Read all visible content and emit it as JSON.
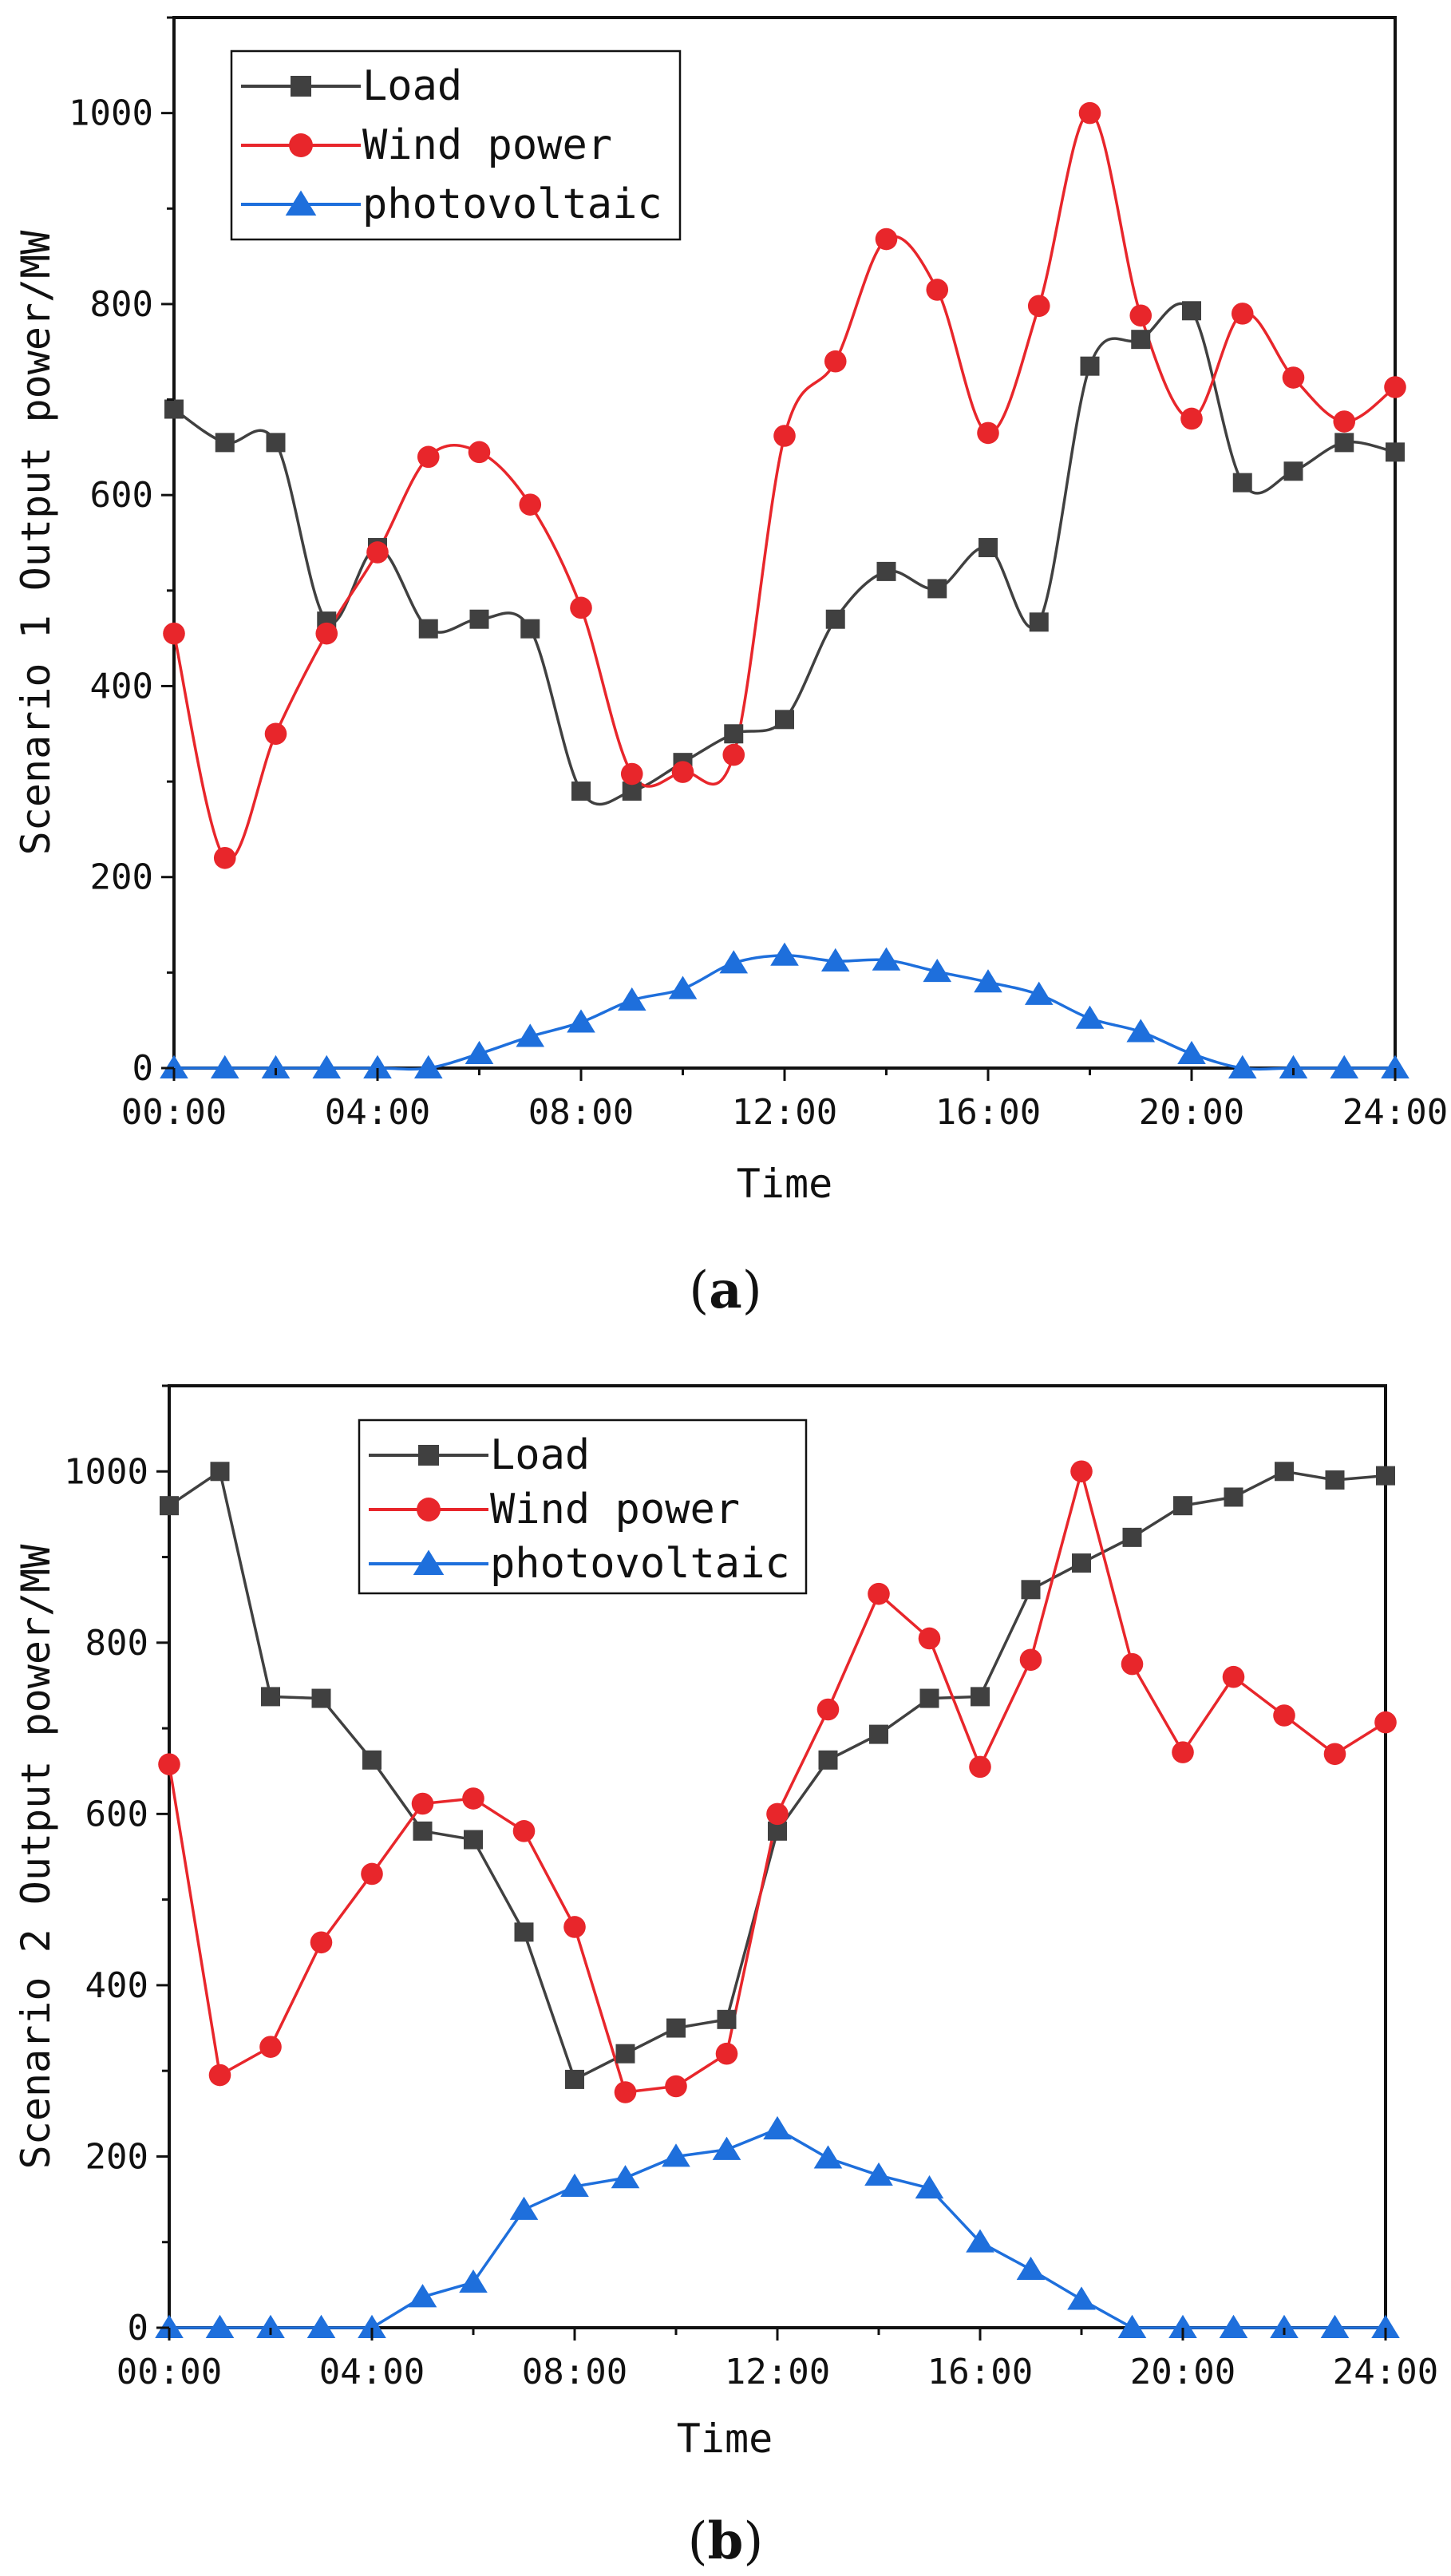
{
  "chart_data": [
    {
      "type": "line",
      "caption": {
        "open": "(",
        "letter": "a",
        "close": ")"
      },
      "xlabel": "Time",
      "ylabel": "Scenario 1 Output power/MW",
      "xlim": [
        0,
        24
      ],
      "ylim": [
        0,
        1100
      ],
      "x_ticks": [
        "00:00",
        "04:00",
        "08:00",
        "12:00",
        "16:00",
        "20:00",
        "24:00"
      ],
      "y_ticks": [
        "0",
        "200",
        "400",
        "600",
        "800",
        "1000"
      ],
      "x_hours": [
        0,
        1,
        2,
        3,
        4,
        5,
        6,
        7,
        8,
        9,
        10,
        11,
        12,
        13,
        14,
        15,
        16,
        17,
        18,
        19,
        20,
        21,
        22,
        23,
        24
      ],
      "legend_position": "top-left",
      "smooth": true,
      "series": [
        {
          "name": "Load",
          "color": "#404040",
          "marker": "square",
          "values": [
            690,
            655,
            655,
            468,
            545,
            460,
            470,
            460,
            290,
            290,
            320,
            350,
            365,
            470,
            520,
            502,
            545,
            467,
            735,
            763,
            793,
            613,
            625,
            655,
            645
          ]
        },
        {
          "name": "Wind power",
          "color": "#e8262b",
          "marker": "circle",
          "values": [
            455,
            220,
            350,
            455,
            540,
            640,
            645,
            590,
            482,
            308,
            310,
            328,
            662,
            740,
            868,
            815,
            665,
            798,
            1000,
            788,
            680,
            790,
            723,
            677,
            713
          ]
        },
        {
          "name": "photovoltaic",
          "color": "#1e6fdc",
          "marker": "triangle",
          "values": [
            0,
            0,
            0,
            0,
            0,
            0,
            15,
            33,
            48,
            71,
            83,
            110,
            118,
            112,
            113,
            101,
            90,
            77,
            52,
            38,
            15,
            0,
            0,
            0,
            0
          ]
        }
      ]
    },
    {
      "type": "line",
      "caption": {
        "open": "(",
        "letter": "b",
        "close": ")"
      },
      "xlabel": "Time",
      "ylabel": "Scenario 2 Output power/MW",
      "xlim": [
        0,
        24
      ],
      "ylim": [
        0,
        1100
      ],
      "x_ticks": [
        "00:00",
        "04:00",
        "08:00",
        "12:00",
        "16:00",
        "20:00",
        "24:00"
      ],
      "y_ticks": [
        "0",
        "200",
        "400",
        "600",
        "800",
        "1000"
      ],
      "x_hours": [
        0,
        1,
        2,
        3,
        4,
        5,
        6,
        7,
        8,
        9,
        10,
        11,
        12,
        13,
        14,
        15,
        16,
        17,
        18,
        19,
        20,
        21,
        22,
        23,
        24
      ],
      "legend_position": "top-left",
      "smooth": false,
      "series": [
        {
          "name": "Load",
          "color": "#404040",
          "marker": "square",
          "values": [
            960,
            1000,
            737,
            735,
            663,
            580,
            570,
            462,
            290,
            320,
            350,
            360,
            580,
            663,
            693,
            735,
            737,
            862,
            893,
            923,
            960,
            970,
            1000,
            990,
            995
          ]
        },
        {
          "name": "Wind power",
          "color": "#e8262b",
          "marker": "circle",
          "values": [
            658,
            295,
            328,
            450,
            530,
            612,
            618,
            580,
            468,
            275,
            282,
            320,
            600,
            722,
            857,
            805,
            655,
            780,
            1000,
            775,
            672,
            760,
            715,
            670,
            707
          ]
        },
        {
          "name": "photovoltaic",
          "color": "#1e6fdc",
          "marker": "triangle",
          "values": [
            0,
            0,
            0,
            0,
            0,
            36,
            53,
            138,
            165,
            175,
            200,
            208,
            232,
            198,
            178,
            163,
            100,
            68,
            33,
            0,
            0,
            0,
            0,
            0,
            0
          ]
        }
      ]
    }
  ]
}
